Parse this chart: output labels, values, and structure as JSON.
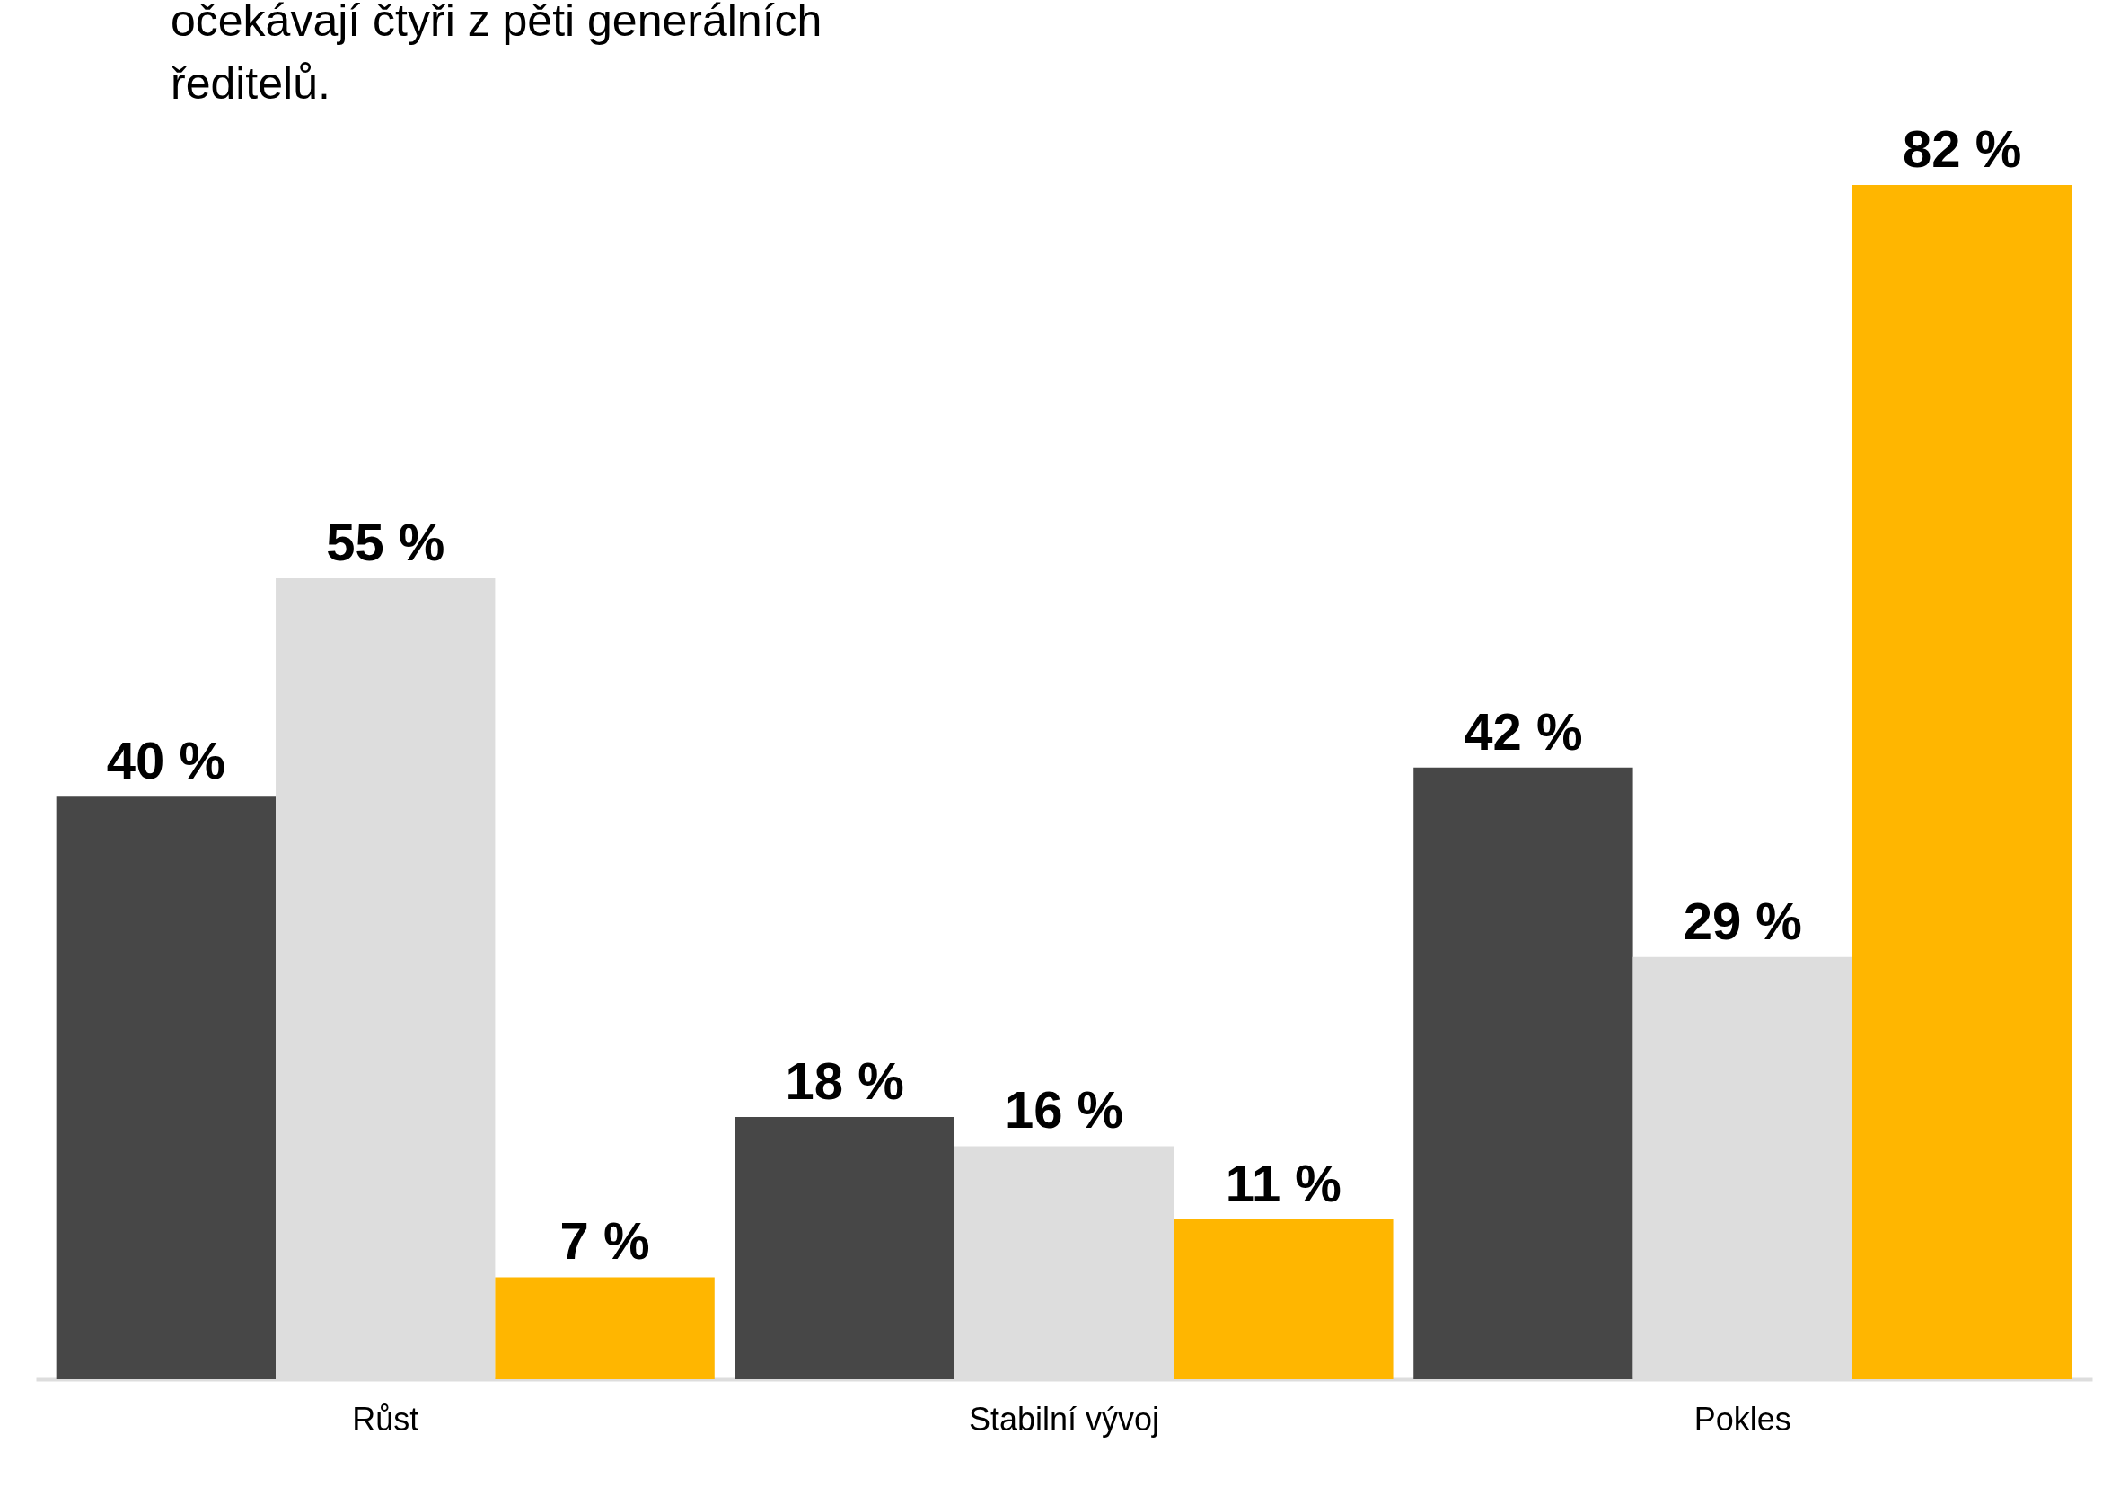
{
  "chart_data": {
    "type": "bar",
    "annotations": [
      "očekávají čtyři z pěti generálních",
      "ředitelů."
    ],
    "categories": [
      "Růst",
      "Stabilní vývoj",
      "Pokles"
    ],
    "series": [
      {
        "color": "#474747",
        "values": [
          40,
          18,
          42
        ],
        "value_labels": [
          "40 %",
          "18 %",
          "42 %"
        ]
      },
      {
        "color": "#dddddd",
        "values": [
          55,
          16,
          29
        ],
        "value_labels": [
          "55 %",
          "16 %",
          "29 %"
        ]
      },
      {
        "color": "#ffb600",
        "values": [
          7,
          11,
          82
        ],
        "value_labels": [
          "7 %",
          "11 %",
          "82 %"
        ]
      }
    ],
    "legend": false,
    "grid": false
  }
}
